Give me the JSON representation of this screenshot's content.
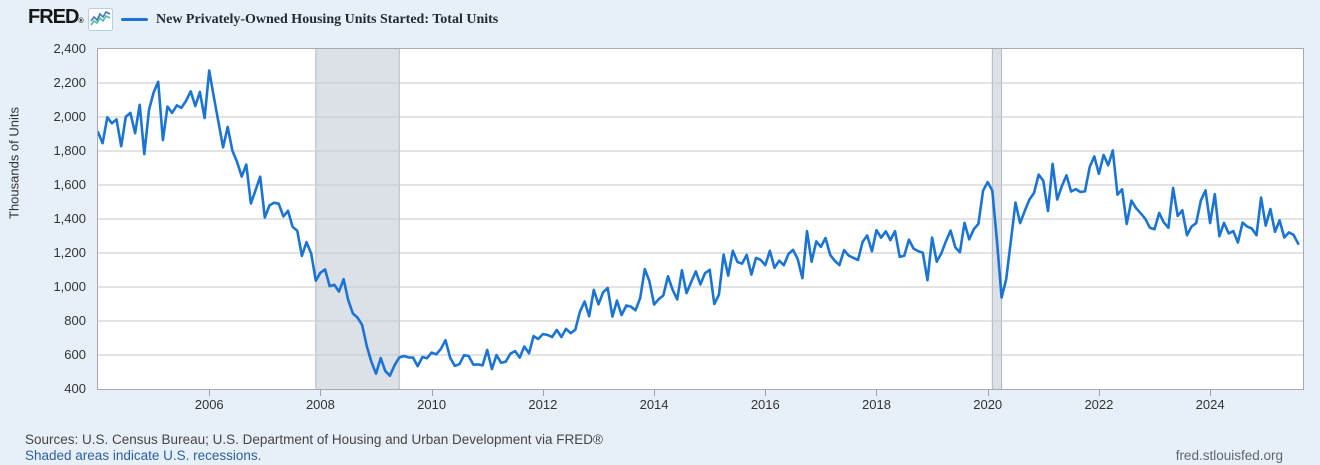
{
  "header": {
    "logo": "FRED",
    "logo_registered": "®",
    "legend_color": "#1b74d3",
    "series_title": "New Privately-Owned Housing Units Started: Total Units"
  },
  "colors": {
    "background": "#e7f0f9",
    "plot_background": "#ffffff",
    "plot_border": "#aaaaaa",
    "gridline": "#c9c9c9",
    "line": "#1b74d3",
    "recession_fill": "#dce1e7",
    "recession_edge": "#b2b8bf",
    "link_blue": "#2f5f9f"
  },
  "chart_data": {
    "type": "line",
    "title": "New Privately-Owned Housing Units Started: Total Units",
    "ylabel": "Thousands of Units",
    "legend": [
      "New Privately-Owned Housing Units Started: Total Units"
    ],
    "frequency": "monthly",
    "start": "2004-01",
    "end": "2025-08",
    "xlim": [
      2004.0,
      2025.67
    ],
    "ylim": [
      400,
      2400
    ],
    "y_ticks": [
      2400,
      2200,
      2000,
      1800,
      1600,
      1400,
      1200,
      1000,
      800,
      600,
      400
    ],
    "x_ticks": [
      2006,
      2008,
      2010,
      2012,
      2014,
      2016,
      2018,
      2020,
      2022,
      2024
    ],
    "grid": "horizontal",
    "recessions": [
      {
        "start": 2007.917,
        "end": 2009.417
      },
      {
        "start": 2020.083,
        "end": 2020.25
      }
    ],
    "values": [
      1911,
      1846,
      1998,
      1963,
      1986,
      1828,
      2002,
      2024,
      1905,
      2072,
      1782,
      2042,
      2144,
      2207,
      1864,
      2061,
      2025,
      2068,
      2054,
      2095,
      2151,
      2065,
      2147,
      1994,
      2273,
      2119,
      1969,
      1821,
      1942,
      1802,
      1737,
      1650,
      1720,
      1491,
      1570,
      1649,
      1409,
      1480,
      1495,
      1490,
      1415,
      1448,
      1354,
      1330,
      1183,
      1264,
      1197,
      1037,
      1084,
      1103,
      1005,
      1013,
      973,
      1046,
      923,
      844,
      820,
      777,
      652,
      560,
      490,
      582,
      505,
      478,
      540,
      585,
      594,
      586,
      585,
      534,
      588,
      581,
      614,
      604,
      636,
      687,
      583,
      536,
      546,
      599,
      594,
      543,
      545,
      539,
      630,
      517,
      600,
      554,
      561,
      608,
      623,
      585,
      650,
      610,
      711,
      694,
      723,
      718,
      706,
      747,
      706,
      754,
      728,
      749,
      854,
      915,
      828,
      983,
      898,
      969,
      994,
      826,
      920,
      835,
      891,
      885,
      863,
      936,
      1105,
      1034,
      897,
      928,
      950,
      1063,
      984,
      927,
      1098,
      964,
      1028,
      1092,
      1015,
      1081,
      1101,
      900,
      954,
      1190,
      1067,
      1213,
      1147,
      1137,
      1189,
      1073,
      1171,
      1160,
      1128,
      1213,
      1113,
      1155,
      1128,
      1195,
      1218,
      1164,
      1052,
      1328,
      1149,
      1268,
      1236,
      1288,
      1189,
      1154,
      1129,
      1217,
      1185,
      1172,
      1158,
      1265,
      1303,
      1210,
      1334,
      1290,
      1327,
      1276,
      1329,
      1177,
      1184,
      1279,
      1226,
      1211,
      1202,
      1040,
      1291,
      1149,
      1199,
      1270,
      1332,
      1233,
      1204,
      1377,
      1280,
      1340,
      1371,
      1567,
      1617,
      1567,
      1269,
      938,
      1046,
      1273,
      1497,
      1376,
      1448,
      1514,
      1553,
      1661,
      1625,
      1447,
      1725,
      1514,
      1594,
      1657,
      1562,
      1576,
      1559,
      1563,
      1706,
      1768,
      1666,
      1777,
      1716,
      1803,
      1543,
      1575,
      1371,
      1508,
      1465,
      1434,
      1401,
      1348,
      1340,
      1436,
      1380,
      1348,
      1583,
      1418,
      1451,
      1305,
      1356,
      1376,
      1510,
      1568,
      1376,
      1546,
      1299,
      1377,
      1315,
      1329,
      1262,
      1379,
      1355,
      1344,
      1305,
      1526,
      1361,
      1459,
      1324,
      1392,
      1291,
      1321,
      1307,
      1255
    ]
  },
  "footer": {
    "sources": "Sources: U.S. Census Bureau; U.S. Department of Housing and Urban Development via FRED®",
    "recession_note": "Shaded areas indicate U.S. recessions.",
    "site": "fred.stlouisfed.org"
  }
}
